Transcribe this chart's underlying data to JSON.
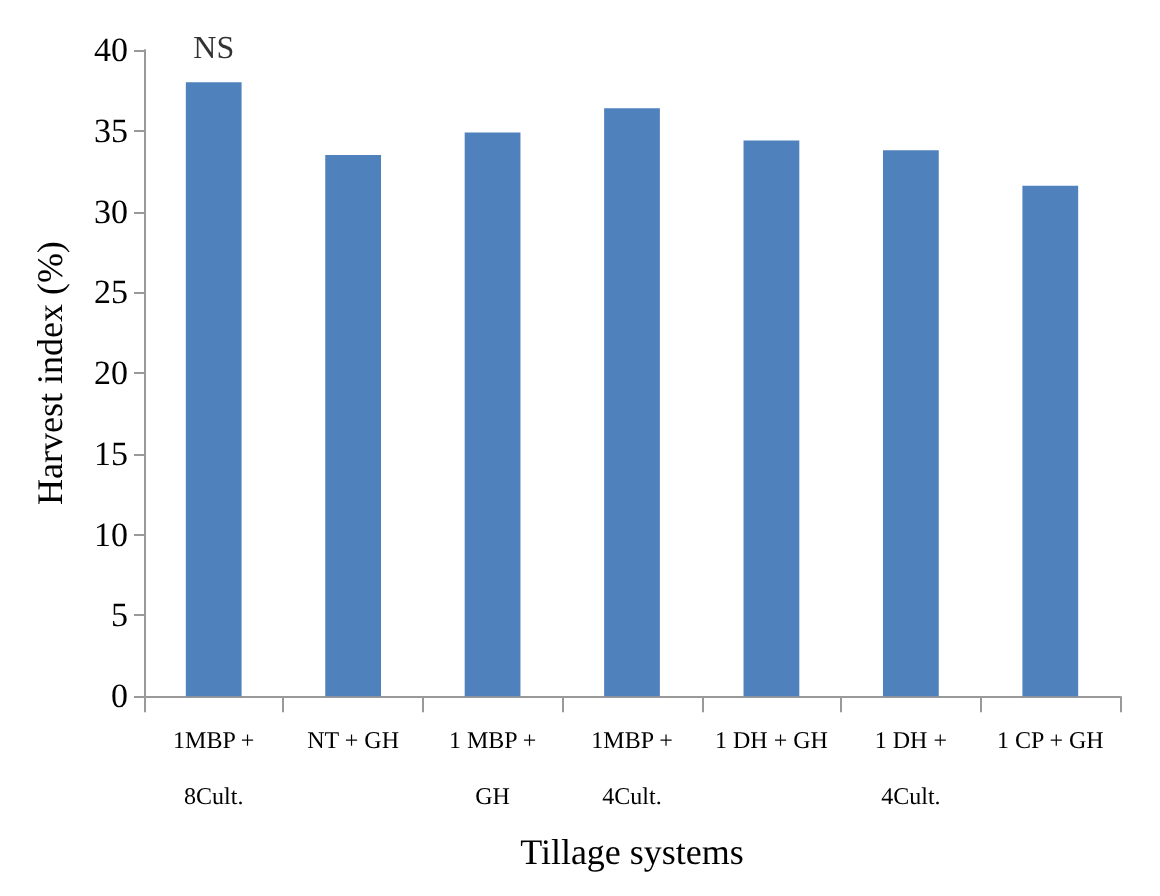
{
  "chart_data": {
    "type": "bar",
    "xlabel": "Tillage systems",
    "ylabel": "Harvest index (%)",
    "categories": [
      "1MBP +\n8Cult.",
      "NT + GH",
      "1 MBP +\nGH",
      "1MBP +\n4Cult.",
      "1 DH + GH",
      "1 DH +\n4Cult.",
      "1 CP + GH"
    ],
    "values": [
      38.0,
      33.5,
      34.9,
      36.4,
      34.4,
      33.8,
      31.6
    ],
    "color": "#4f81bd",
    "ylim": [
      0,
      40
    ],
    "yticks": [
      0,
      5,
      10,
      15,
      20,
      25,
      30,
      35,
      40
    ],
    "grid": false,
    "annotations": [
      {
        "text": "NS",
        "x": "1MBP +\n8Cult.",
        "y": 38.0
      }
    ]
  }
}
